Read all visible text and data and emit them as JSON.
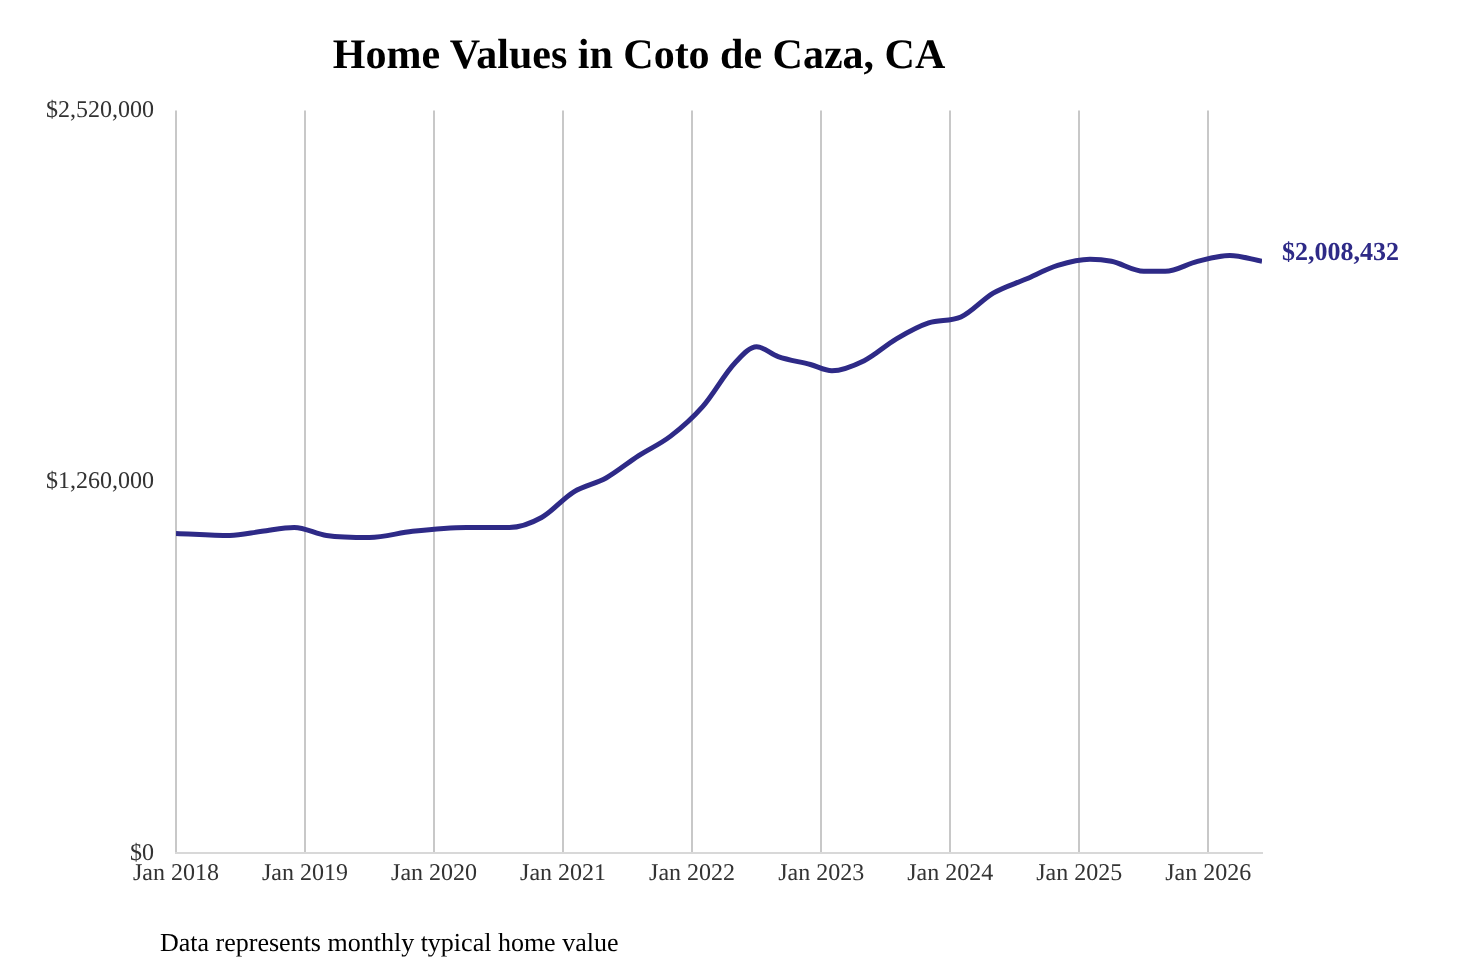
{
  "chart_data": {
    "type": "line",
    "title": "Home Values in Coto de Caza, CA",
    "x": [
      "2018-01",
      "2018-06",
      "2018-09",
      "2018-12",
      "2019-03",
      "2019-07",
      "2019-11",
      "2020-04",
      "2020-08",
      "2020-11",
      "2021-02",
      "2021-05",
      "2021-08",
      "2021-11",
      "2022-02",
      "2022-05",
      "2022-07",
      "2022-09",
      "2022-12",
      "2023-02",
      "2023-05",
      "2023-08",
      "2023-11",
      "2024-02",
      "2024-05",
      "2024-08",
      "2024-11",
      "2025-02",
      "2025-04",
      "2025-07",
      "2025-09",
      "2025-12",
      "2026-03",
      "2026-06"
    ],
    "series": [
      {
        "color": "#2e2a87",
        "values": [
          1085000,
          1078000,
          1092000,
          1105000,
          1078000,
          1071000,
          1092000,
          1105000,
          1105000,
          1139000,
          1226000,
          1273000,
          1348000,
          1415000,
          1516000,
          1664000,
          1718000,
          1685000,
          1658000,
          1637000,
          1671000,
          1745000,
          1799000,
          1819000,
          1900000,
          1947000,
          1994000,
          2015000,
          2008000,
          1974000,
          1974000,
          2008000,
          2028000,
          2008432
        ]
      }
    ],
    "xticks": [
      {
        "value": "2018-01",
        "label": "Jan 2018"
      },
      {
        "value": "2019-01",
        "label": "Jan 2019"
      },
      {
        "value": "2020-01",
        "label": "Jan 2020"
      },
      {
        "value": "2021-01",
        "label": "Jan 2021"
      },
      {
        "value": "2022-01",
        "label": "Jan 2022"
      },
      {
        "value": "2023-01",
        "label": "Jan 2023"
      },
      {
        "value": "2024-01",
        "label": "Jan 2024"
      },
      {
        "value": "2025-01",
        "label": "Jan 2025"
      },
      {
        "value": "2026-01",
        "label": "Jan 2026"
      }
    ],
    "xlim": [
      "2018-01",
      "2026-06"
    ],
    "ylim": [
      0,
      2520000
    ],
    "yticks": [
      {
        "value": 0,
        "label": "$0"
      },
      {
        "value": 1260000,
        "label": "$1,260,000"
      },
      {
        "value": 2520000,
        "label": "$2,520,000"
      }
    ],
    "grid": "x",
    "legend": false,
    "marker": "none",
    "line_style": "solid",
    "annotations": [
      {
        "text": "$2,008,432",
        "x": "2026-06",
        "y": 2008432
      },
      "Data represents monthly typical home value"
    ]
  }
}
